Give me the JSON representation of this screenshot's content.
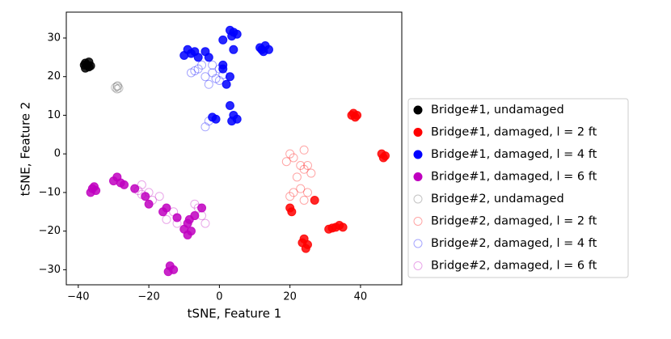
{
  "chart_data": {
    "type": "scatter",
    "xlabel": "tSNE, Feature 1",
    "ylabel": "tSNE, Feature 2",
    "xlim": [
      -43.4,
      51.7
    ],
    "ylim": [
      -33.9,
      36.7
    ],
    "xticks": [
      {
        "value": -40,
        "label": "−40"
      },
      {
        "value": -20,
        "label": "−20"
      },
      0,
      20,
      40
    ],
    "yticks": [
      {
        "value": -30,
        "label": "−30"
      },
      {
        "value": -20,
        "label": "−20"
      },
      {
        "value": -10,
        "label": "−10"
      },
      0,
      10,
      20,
      30
    ],
    "legend": "outside right",
    "series": [
      {
        "name": "Bridge#1, undamaged",
        "color": "#000000",
        "marker": "filled",
        "x": [
          -38,
          -37,
          -37.5,
          -36.5,
          -38,
          -37,
          -38.3
        ],
        "values": [
          23.5,
          22.5,
          23,
          22.8,
          22.2,
          23.8,
          23
        ]
      },
      {
        "name": "Bridge#1, damaged, l = 2 ft",
        "color": "#ff0000",
        "marker": "filled",
        "x": [
          38,
          39,
          38.5,
          37.5,
          46,
          47,
          46.5,
          33,
          34,
          32,
          31,
          35,
          24,
          25,
          24.5,
          23.5,
          20,
          20.5,
          27
        ],
        "values": [
          10.5,
          10,
          9.5,
          10,
          0,
          -0.5,
          -1,
          -19,
          -18.5,
          -19.2,
          -19.5,
          -19,
          -22,
          -23.5,
          -24.5,
          -23,
          -14,
          -15,
          -12
        ]
      },
      {
        "name": "Bridge#1, damaged, l = 4 ft",
        "color": "#0000ff",
        "marker": "filled",
        "x": [
          -9,
          -8,
          -10,
          -7,
          -6,
          3,
          4,
          5,
          3.5,
          1,
          12,
          13,
          12.5,
          11.5,
          14,
          -3,
          -4,
          1,
          3,
          2,
          4,
          3,
          4,
          5,
          3.5,
          -2,
          -1,
          1
        ],
        "values": [
          27,
          26,
          25.5,
          26.5,
          25,
          32,
          31.5,
          31,
          30.5,
          29.5,
          27,
          28,
          26.5,
          27.5,
          27,
          25,
          26.5,
          22,
          20,
          18,
          27,
          12.5,
          10,
          9,
          8.5,
          9.5,
          9,
          23
        ]
      },
      {
        "name": "Bridge#1, damaged, l = 6 ft",
        "color": "#bf00bf",
        "marker": "filled",
        "x": [
          -36,
          -35,
          -36.5,
          -35.5,
          -30,
          -29,
          -28,
          -27,
          -24,
          -20,
          -21,
          -15,
          -16,
          -12,
          -14,
          -13,
          -14.5,
          -9,
          -10,
          -8,
          -9,
          -8.5,
          -5,
          -7
        ],
        "values": [
          -9,
          -9.5,
          -10,
          -8.5,
          -7,
          -6,
          -7.5,
          -8,
          -9,
          -13,
          -11,
          -14,
          -15,
          -16.5,
          -29,
          -30,
          -30.5,
          -18,
          -19.5,
          -20,
          -21,
          -17,
          -14,
          -16
        ]
      },
      {
        "name": "Bridge#2, undamaged",
        "color": "#555555",
        "marker": "open",
        "x": [
          -29,
          -28.5,
          -29.5,
          -29,
          -28.8
        ],
        "values": [
          17.5,
          17,
          17.2,
          16.8,
          17.6
        ]
      },
      {
        "name": "Bridge#2, damaged, l = 2 ft",
        "color": "#ff0000",
        "marker": "open",
        "x": [
          19,
          21,
          20,
          23,
          24,
          25,
          22,
          23,
          25,
          24,
          21,
          20,
          24,
          26
        ],
        "values": [
          -2,
          -1,
          0,
          -3,
          -4,
          -3,
          -6,
          -9,
          -10,
          -12,
          -10,
          -11,
          1,
          -5
        ]
      },
      {
        "name": "Bridge#2, damaged, l = 4 ft",
        "color": "#0000ff",
        "marker": "open",
        "x": [
          -7,
          -6,
          -8,
          -2,
          -1,
          0,
          1,
          -3,
          0,
          -4,
          -5,
          -2,
          -3,
          -4
        ],
        "values": [
          21.5,
          22,
          21,
          21,
          19.5,
          22,
          20.5,
          18,
          19,
          20,
          23,
          23,
          8.5,
          7
        ]
      },
      {
        "name": "Bridge#2, damaged, l = 6 ft",
        "color": "#bf00bf",
        "marker": "open",
        "x": [
          -22,
          -23,
          -20,
          -19,
          -17,
          -15,
          -13,
          -12,
          -6,
          -5,
          -7,
          -22,
          -4
        ],
        "values": [
          -8,
          -9.5,
          -10,
          -12,
          -11,
          -17,
          -15,
          -18,
          -14,
          -16,
          -13,
          -10.5,
          -18
        ]
      }
    ]
  }
}
